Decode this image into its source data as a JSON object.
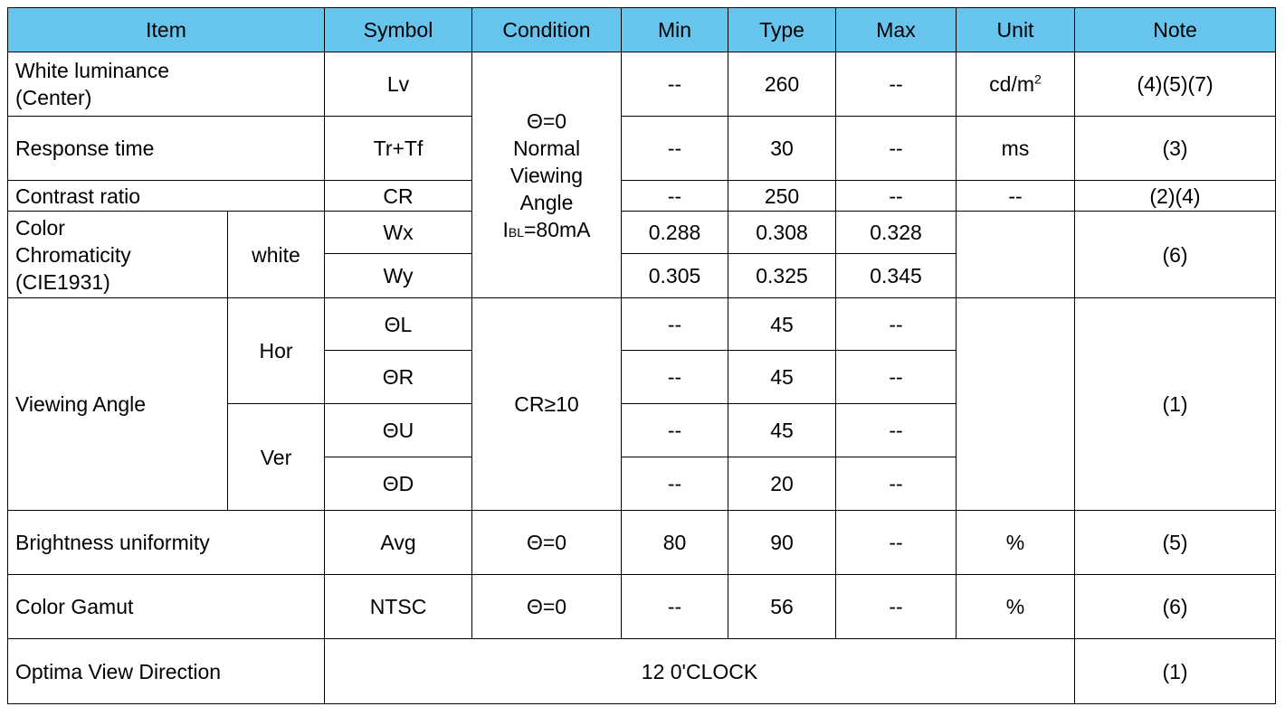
{
  "header": {
    "item": "Item",
    "symbol": "Symbol",
    "condition": "Condition",
    "min": "Min",
    "type": "Type",
    "max": "Max",
    "unit": "Unit",
    "note": "Note"
  },
  "colors": {
    "header_bg": "#67c4ec",
    "border": "#000000"
  },
  "condition_block": {
    "line1": "Θ=0",
    "line2": "Normal",
    "line3": "Viewing",
    "line4": "Angle",
    "i_label": "I",
    "i_sub": "BL",
    "i_value": "=80mA"
  },
  "rows": {
    "white_luminance": {
      "item_line1": "White luminance",
      "item_line2": "(Center)",
      "symbol": "Lv",
      "min": "--",
      "type": "260",
      "max": "--",
      "unit_base": "cd/m",
      "unit_sup": "2",
      "note": "(4)(5)(7)"
    },
    "response_time": {
      "item": "Response time",
      "symbol": "Tr+Tf",
      "min": "--",
      "type": "30",
      "max": "--",
      "unit": "ms",
      "note": "(3)"
    },
    "contrast_ratio": {
      "item": "Contrast ratio",
      "symbol": "CR",
      "min": "--",
      "type": "250",
      "max": "--",
      "unit": "--",
      "note": "(2)(4)"
    },
    "color_chromaticity": {
      "item_line1": "Color",
      "item_line2": "Chromaticity",
      "item_line3": "(CIE1931)",
      "sub": "white",
      "note": "(6)",
      "wx": {
        "symbol": "Wx",
        "min": "0.288",
        "type": "0.308",
        "max": "0.328"
      },
      "wy": {
        "symbol": "Wy",
        "min": "0.305",
        "type": "0.325",
        "max": "0.345"
      }
    },
    "viewing_angle": {
      "item": "Viewing Angle",
      "hor": "Hor",
      "ver": "Ver",
      "condition": "CR≥10",
      "note": "(1)",
      "theta_l": {
        "symbol": "ΘL",
        "min": "--",
        "type": "45",
        "max": "--"
      },
      "theta_r": {
        "symbol": "ΘR",
        "min": "--",
        "type": "45",
        "max": "--"
      },
      "theta_u": {
        "symbol": "ΘU",
        "min": "--",
        "type": "45",
        "max": "--"
      },
      "theta_d": {
        "symbol": "ΘD",
        "min": "--",
        "type": "20",
        "max": "--"
      }
    },
    "brightness_uniformity": {
      "item": "Brightness uniformity",
      "symbol": "Avg",
      "condition": "Θ=0",
      "min": "80",
      "type": "90",
      "max": "--",
      "unit": "%",
      "note": "(5)"
    },
    "color_gamut": {
      "item": "Color Gamut",
      "symbol": "NTSC",
      "condition": "Θ=0",
      "min": "--",
      "type": "56",
      "max": "--",
      "unit": "%",
      "note": "(6)"
    },
    "optima_view": {
      "item": "Optima View Direction",
      "value": "12 0'CLOCK",
      "note": "(1)"
    }
  }
}
